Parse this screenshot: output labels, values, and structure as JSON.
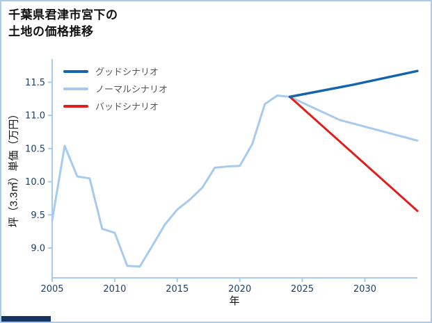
{
  "frame": {
    "border_color": "#a8cdec",
    "background": "#ffffff",
    "footer_bar_color": "#173460"
  },
  "title": {
    "line1": "千葉県君津市宮下の",
    "line2": "土地の価格推移"
  },
  "legend": {
    "items": [
      {
        "label": "グッドシナリオ",
        "color": "#1565ad"
      },
      {
        "label": "ノーマルシナリオ",
        "color": "#a6cbee"
      },
      {
        "label": "バッドシナリオ",
        "color": "#e51c1c"
      }
    ]
  },
  "axis": {
    "xlabel": "年",
    "ylabel": "坪（3.3㎡）単価（万円）"
  },
  "chart_data": {
    "type": "line",
    "title": "千葉県君津市宮下の土地の価格推移",
    "xlabel": "年",
    "ylabel": "坪（3.3㎡）単価（万円）",
    "xlim": [
      2005,
      2034.2
    ],
    "ylim": [
      8.55,
      11.85
    ],
    "xticks": [
      2005,
      2010,
      2015,
      2020,
      2025,
      2030
    ],
    "yticks": [
      9.0,
      9.5,
      10.0,
      10.5,
      11.0,
      11.5
    ],
    "grid": false,
    "legend_position": "upper-left-inside",
    "axis_color": "#a6cbee",
    "tick_color": "#1d3f66",
    "series": [
      {
        "name": "ノーマルシナリオ",
        "color": "#a6cbee",
        "width": 3,
        "x": [
          2005,
          2006,
          2007,
          2008,
          2009,
          2010,
          2011,
          2012,
          2013,
          2014,
          2015,
          2016,
          2017,
          2018,
          2019,
          2020,
          2021,
          2022,
          2023,
          2024,
          2028,
          2034.2
        ],
        "y": [
          9.42,
          10.54,
          10.08,
          10.05,
          9.29,
          9.23,
          8.73,
          8.72,
          9.03,
          9.35,
          9.58,
          9.73,
          9.91,
          10.21,
          10.23,
          10.24,
          10.57,
          11.17,
          11.3,
          11.28,
          10.93,
          10.62
        ]
      },
      {
        "name": "バッドシナリオ",
        "color": "#e51c1c",
        "width": 3,
        "x": [
          2024,
          2034.2
        ],
        "y": [
          11.28,
          9.56
        ]
      },
      {
        "name": "グッドシナリオ",
        "color": "#1565ad",
        "width": 3.5,
        "x": [
          2024,
          2029,
          2034.2
        ],
        "y": [
          11.28,
          11.46,
          11.67
        ]
      }
    ]
  }
}
